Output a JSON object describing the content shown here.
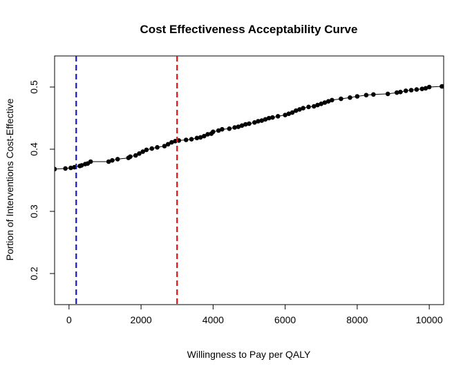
{
  "chart_data": {
    "type": "line",
    "title": "Cost Effectiveness Acceptability Curve",
    "xlabel": "Willingness to Pay per QALY",
    "ylabel": "Portion of Interventions Cost-Effective",
    "xlim": [
      -400,
      10400
    ],
    "ylim": [
      0.15,
      0.55
    ],
    "xticks": [
      0,
      2000,
      4000,
      6000,
      8000,
      10000
    ],
    "xtick_labels": [
      "0",
      "2000",
      "4000",
      "6000",
      "8000",
      "10000"
    ],
    "yticks": [
      0.2,
      0.3,
      0.4,
      0.5
    ],
    "ytick_labels": [
      "0.2",
      "0.3",
      "0.4",
      "0.5"
    ],
    "grid": false,
    "series": [
      {
        "color": "#000000",
        "marker": "circle",
        "x": [
          -400,
          -100,
          50,
          150,
          300,
          350,
          450,
          520,
          600,
          1100,
          1200,
          1350,
          1650,
          1700,
          1850,
          1950,
          2050,
          2150,
          2300,
          2450,
          2650,
          2750,
          2850,
          2950,
          3050,
          3250,
          3400,
          3550,
          3650,
          3750,
          3850,
          3950,
          4000,
          4150,
          4250,
          4450,
          4600,
          4700,
          4800,
          4900,
          5000,
          5150,
          5250,
          5350,
          5450,
          5550,
          5650,
          5800,
          6000,
          6100,
          6200,
          6300,
          6400,
          6500,
          6650,
          6800,
          6900,
          7000,
          7100,
          7200,
          7300,
          7550,
          7800,
          8000,
          8250,
          8450,
          8850,
          9100,
          9200,
          9350,
          9500,
          9650,
          9800,
          9900,
          10000,
          10350,
          10400
        ],
        "y": [
          0.368,
          0.369,
          0.37,
          0.371,
          0.373,
          0.374,
          0.376,
          0.377,
          0.38,
          0.38,
          0.382,
          0.384,
          0.386,
          0.388,
          0.39,
          0.393,
          0.396,
          0.399,
          0.401,
          0.403,
          0.405,
          0.408,
          0.411,
          0.413,
          0.414,
          0.415,
          0.416,
          0.418,
          0.419,
          0.421,
          0.424,
          0.425,
          0.428,
          0.43,
          0.432,
          0.433,
          0.435,
          0.436,
          0.438,
          0.44,
          0.441,
          0.443,
          0.445,
          0.446,
          0.448,
          0.45,
          0.451,
          0.453,
          0.455,
          0.457,
          0.459,
          0.462,
          0.464,
          0.466,
          0.468,
          0.469,
          0.471,
          0.473,
          0.475,
          0.477,
          0.479,
          0.481,
          0.483,
          0.485,
          0.487,
          0.488,
          0.489,
          0.491,
          0.492,
          0.494,
          0.495,
          0.496,
          0.497,
          0.498,
          0.5,
          0.501,
          0.501
        ]
      }
    ],
    "reference_lines": [
      {
        "orientation": "vertical",
        "x": 200,
        "color": "#1a1aaa",
        "style": "dashed"
      },
      {
        "orientation": "vertical",
        "x": 3000,
        "color": "#dd1111",
        "style": "dashed"
      }
    ]
  }
}
